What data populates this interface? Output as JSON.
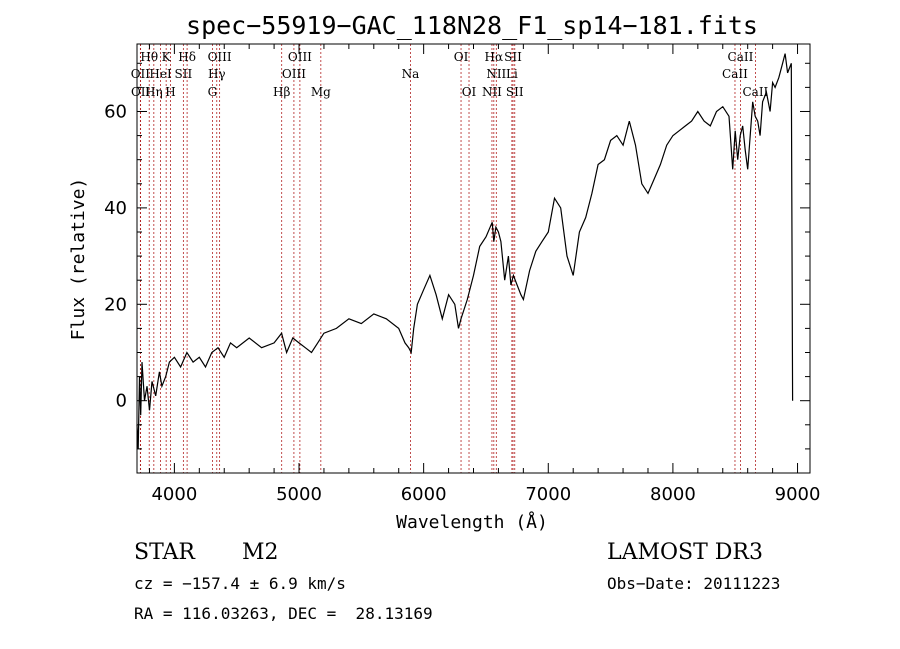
{
  "chart_data": {
    "type": "line",
    "title": "spec−55919−GAC_118N28_F1_sp14−181.fits",
    "xlabel": "Wavelength (Å)",
    "ylabel": "Flux (relative)",
    "xlim": [
      3700,
      9100
    ],
    "ylim": [
      -15,
      74
    ],
    "xticks": [
      4000,
      5000,
      6000,
      7000,
      8000,
      9000
    ],
    "yticks": [
      0,
      20,
      40,
      60
    ],
    "series": [
      {
        "name": "flux",
        "x": [
          3700,
          3710,
          3720,
          3730,
          3740,
          3760,
          3780,
          3800,
          3820,
          3850,
          3880,
          3900,
          3930,
          3960,
          4000,
          4050,
          4100,
          4150,
          4200,
          4250,
          4300,
          4350,
          4400,
          4450,
          4500,
          4600,
          4700,
          4800,
          4860,
          4900,
          4950,
          5000,
          5050,
          5100,
          5150,
          5200,
          5300,
          5400,
          5500,
          5600,
          5700,
          5800,
          5850,
          5880,
          5900,
          5920,
          5950,
          6000,
          6050,
          6100,
          6150,
          6200,
          6250,
          6280,
          6300,
          6350,
          6400,
          6450,
          6500,
          6550,
          6563,
          6580,
          6600,
          6620,
          6650,
          6680,
          6700,
          6720,
          6750,
          6780,
          6800,
          6850,
          6900,
          6950,
          7000,
          7050,
          7100,
          7150,
          7200,
          7250,
          7300,
          7350,
          7400,
          7450,
          7500,
          7550,
          7600,
          7650,
          7700,
          7750,
          7800,
          7850,
          7900,
          7950,
          8000,
          8050,
          8100,
          8150,
          8200,
          8250,
          8300,
          8350,
          8400,
          8450,
          8480,
          8500,
          8520,
          8540,
          8560,
          8580,
          8600,
          8620,
          8640,
          8660,
          8680,
          8700,
          8720,
          8750,
          8780,
          8800,
          8820,
          8850,
          8880,
          8900,
          8920,
          8950,
          8960
        ],
        "y": [
          -5,
          -10,
          5,
          -3,
          8,
          0,
          3,
          -2,
          4,
          1,
          6,
          3,
          5,
          8,
          9,
          7,
          10,
          8,
          9,
          7,
          10,
          11,
          9,
          12,
          11,
          13,
          11,
          12,
          14,
          10,
          13,
          12,
          11,
          10,
          12,
          14,
          15,
          17,
          16,
          18,
          17,
          15,
          12,
          11,
          10,
          15,
          20,
          23,
          26,
          22,
          17,
          22,
          20,
          15,
          17,
          21,
          26,
          32,
          34,
          37,
          33,
          36,
          35,
          33,
          25,
          30,
          24,
          26,
          24,
          22,
          21,
          27,
          31,
          33,
          35,
          42,
          40,
          30,
          26,
          35,
          38,
          43,
          49,
          50,
          54,
          55,
          53,
          58,
          53,
          45,
          43,
          46,
          49,
          53,
          55,
          56,
          57,
          58,
          60,
          58,
          57,
          60,
          61,
          59,
          48,
          56,
          50,
          55,
          57,
          52,
          48,
          55,
          62,
          59,
          58,
          55,
          62,
          64,
          60,
          66,
          65,
          67,
          70,
          72,
          68,
          70,
          0
        ]
      }
    ],
    "line_ids": [
      {
        "label": "Hθ",
        "wavelength": 3798,
        "row": 1
      },
      {
        "label": "OII",
        "wavelength": 3727,
        "row": 2
      },
      {
        "label": "OII",
        "wavelength": 3729,
        "row": 3
      },
      {
        "label": "K",
        "wavelength": 3934,
        "row": 1
      },
      {
        "label": "HeI",
        "wavelength": 3889,
        "row": 2
      },
      {
        "label": "Hη",
        "wavelength": 3835,
        "row": 3
      },
      {
        "label": "H",
        "wavelength": 3969,
        "row": 3
      },
      {
        "label": "Hδ",
        "wavelength": 4102,
        "row": 1
      },
      {
        "label": "SII",
        "wavelength": 4072,
        "row": 2
      },
      {
        "label": "OIII",
        "wavelength": 4363,
        "row": 1
      },
      {
        "label": "Hγ",
        "wavelength": 4340,
        "row": 2
      },
      {
        "label": "G",
        "wavelength": 4305,
        "row": 3
      },
      {
        "label": "OIII",
        "wavelength": 5007,
        "row": 1
      },
      {
        "label": "OIII",
        "wavelength": 4959,
        "row": 2
      },
      {
        "label": "Hβ",
        "wavelength": 4861,
        "row": 3
      },
      {
        "label": "Mg",
        "wavelength": 5175,
        "row": 3
      },
      {
        "label": "Na",
        "wavelength": 5894,
        "row": 2
      },
      {
        "label": "OI",
        "wavelength": 6300,
        "row": 1
      },
      {
        "label": "OI",
        "wavelength": 6364,
        "row": 3
      },
      {
        "label": "Hα",
        "wavelength": 6563,
        "row": 1
      },
      {
        "label": "NII",
        "wavelength": 6583,
        "row": 2
      },
      {
        "label": "NII",
        "wavelength": 6548,
        "row": 3
      },
      {
        "label": "SII",
        "wavelength": 6717,
        "row": 1
      },
      {
        "label": "Li",
        "wavelength": 6708,
        "row": 2
      },
      {
        "label": "SII",
        "wavelength": 6731,
        "row": 3
      },
      {
        "label": "CaII",
        "wavelength": 8542,
        "row": 1
      },
      {
        "label": "CaII",
        "wavelength": 8498,
        "row": 2
      },
      {
        "label": "CaII",
        "wavelength": 8662,
        "row": 3
      }
    ]
  },
  "info": {
    "object_class": "STAR",
    "subclass": "M2",
    "survey": "LAMOST DR3",
    "redshift": "cz = −157.4 ± 6.9 km/s",
    "obs_date": "Obs−Date: 20111223",
    "coords": "RA = 116.03263, DEC =  28.13169"
  }
}
